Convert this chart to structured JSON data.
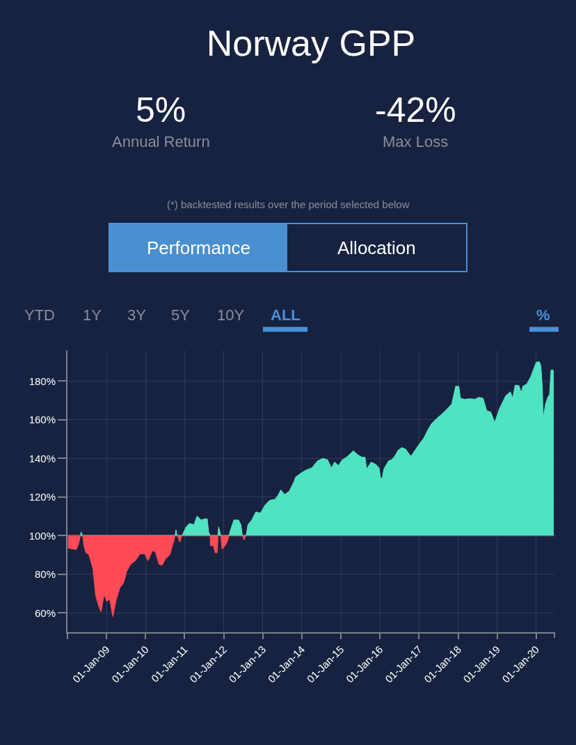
{
  "chart_data": {
    "type": "area",
    "title": "Norway GPP",
    "annotations": [
      "5%",
      "Annual Return",
      "-42%",
      "Max Loss",
      "(*) backtested results over the period selected below",
      "Performance",
      "Allocation",
      "YTD",
      "1Y",
      "3Y",
      "5Y",
      "10Y",
      "ALL",
      "%"
    ],
    "series": [
      {
        "color": "#50e3c2",
        "x": [
          "2008-05-01",
          "2008-05-08",
          "2008-05-19",
          "2008-05-22",
          "2009-06-01",
          "2010-10-02",
          "2010-10-12",
          "2010-10-22",
          "2010-11-17",
          "2010-12-05",
          "2010-12-09",
          "2011-01-15",
          "2011-02-14",
          "2011-03-29",
          "2011-04-27",
          "2011-06-03",
          "2011-07-09",
          "2011-07-31",
          "2011-08-15",
          "2011-08-24",
          "2011-08-27",
          "2011-10-12",
          "2011-11-08",
          "2011-11-14",
          "2011-12-02",
          "2011-12-05",
          "2012-01-15",
          "2012-02-20",
          "2012-02-28",
          "2012-04-05",
          "2012-05-19",
          "2012-06-10",
          "2012-06-22",
          "2012-06-24",
          "2012-07-09",
          "2012-07-28",
          "2012-08-15",
          "2012-09-20",
          "2012-10-27",
          "2012-12-09",
          "2013-01-23",
          "2013-03-07",
          "2013-04-27",
          "2013-05-27",
          "2013-06-18",
          "2013-07-24",
          "2013-09-06",
          "2013-10-19",
          "2013-11-03",
          "2013-12-16",
          "2014-02-06",
          "2014-04-05",
          "2014-05-27",
          "2014-07-17",
          "2014-08-29",
          "2014-10-05",
          "2014-11-03",
          "2014-12-09",
          "2015-01-15",
          "2015-02-28",
          "2015-04-27",
          "2015-06-10",
          "2015-07-17",
          "2015-08-15",
          "2015-08-29",
          "2015-10-12",
          "2015-11-24",
          "2015-12-24",
          "2016-01-08",
          "2016-01-23",
          "2016-02-06",
          "2016-03-22",
          "2016-04-20",
          "2016-05-19",
          "2016-06-18",
          "2016-07-24",
          "2016-08-29",
          "2016-10-05",
          "2016-10-19",
          "2016-11-24",
          "2017-01-08",
          "2017-02-14",
          "2017-03-22",
          "2017-04-27",
          "2017-06-10",
          "2017-07-24",
          "2017-09-13",
          "2017-11-03",
          "2017-12-09",
          "2018-01-08",
          "2018-01-23",
          "2018-02-28",
          "2018-04-20",
          "2018-06-10",
          "2018-07-09",
          "2018-08-22",
          "2018-09-27",
          "2018-11-03",
          "2018-12-09",
          "2019-01-23",
          "2019-03-22",
          "2019-05-05",
          "2019-05-27",
          "2019-06-18",
          "2019-07-24",
          "2019-08-15",
          "2019-08-29",
          "2019-10-05",
          "2019-11-10",
          "2020-01-01",
          "2020-01-30",
          "2020-02-14",
          "2020-02-28",
          "2020-03-07",
          "2020-03-29",
          "2020-04-20",
          "2020-05-05",
          "2020-05-19",
          "2020-06-10"
        ],
        "values": [
          100,
          102,
          100.2,
          100,
          null,
          100,
          103,
          100,
          null,
          100,
          100.2,
          104.5,
          106.3,
          105.7,
          110.2,
          108.1,
          108.7,
          108.7,
          101.4,
          100.8,
          100,
          null,
          100,
          104.5,
          100.8,
          100,
          null,
          100,
          102,
          108.1,
          108.1,
          105.7,
          100.8,
          100,
          null,
          100,
          105.7,
          108.1,
          112.3,
          111.7,
          115.9,
          118.3,
          118.9,
          121.3,
          123.7,
          121.3,
          123.1,
          127.9,
          130.3,
          132.1,
          133.9,
          135.1,
          138.7,
          140,
          139.3,
          135.1,
          138.1,
          136.3,
          139.3,
          140.8,
          143.9,
          141.8,
          140.6,
          140.6,
          134.5,
          138.1,
          136.9,
          135.1,
          129.7,
          129.7,
          134.5,
          138.7,
          139.3,
          141.2,
          144.2,
          145.6,
          144.8,
          141.8,
          141.2,
          144.2,
          147.8,
          150.5,
          154.5,
          158,
          160.4,
          162.5,
          165.2,
          168.2,
          177.3,
          177.3,
          171.2,
          170.6,
          170.9,
          170.6,
          171.6,
          171.2,
          164.6,
          164,
          158.6,
          165.8,
          172.4,
          174.5,
          171.2,
          177.9,
          177.7,
          174.1,
          177.3,
          178.5,
          182.1,
          189.7,
          190.1,
          188.1,
          176.7,
          161,
          168.2,
          171.8,
          173,
          185.7,
          185.7
        ]
      },
      {
        "color": "#ff4a57",
        "x": [
          "2008-01-08",
          "2008-01-08",
          "2008-02-28",
          "2008-03-22",
          "2008-04-13",
          "2008-04-27",
          "2008-05-01",
          "2008-05-08",
          "2008-05-22",
          "2008-06-03",
          "2008-06-21",
          "2008-07-20",
          "2008-08-26",
          "2008-09-20",
          "2008-10-19",
          "2008-11-10",
          "2008-12-09",
          "2009-01-01",
          "2009-01-30",
          "2009-02-28",
          "2009-03-29",
          "2009-05-05",
          "2009-06-10",
          "2009-07-09",
          "2009-08-15",
          "2009-09-27",
          "2009-11-10",
          "2009-12-24",
          "2010-01-23",
          "2010-03-07",
          "2010-04-05",
          "2010-05-05",
          "2010-06-03",
          "2010-07-09",
          "2010-08-15",
          "2010-09-27",
          "2010-10-02",
          "2010-10-12",
          "2010-10-22",
          "2010-10-27",
          "2010-11-17",
          "2010-12-05",
          "2011-04-27",
          "2011-08-27",
          "2011-08-29",
          "2011-09-27",
          "2011-10-12",
          "2011-11-03",
          "2011-11-08",
          "2011-11-14",
          "2011-12-05",
          "2011-12-16",
          "2012-01-15",
          "2012-02-06",
          "2012-02-20",
          "2012-04-05",
          "2012-06-24",
          "2012-07-09",
          "2012-07-24",
          "2012-07-28"
        ],
        "values": [
          100,
          93.6,
          93,
          92.8,
          95.4,
          99,
          100,
          null,
          100,
          94.8,
          91.2,
          90,
          82.8,
          69,
          63.5,
          60.5,
          69.6,
          66,
          67,
          58.1,
          66,
          73,
          75.6,
          81.6,
          85.2,
          87,
          90.6,
          90.6,
          87,
          92.4,
          91.2,
          85.2,
          84.6,
          88.2,
          90,
          98.4,
          100,
          null,
          100,
          99.6,
          96.6,
          100,
          null,
          100,
          94.8,
          94.8,
          91.2,
          91.2,
          100,
          null,
          100,
          93,
          94.8,
          97.2,
          100,
          null,
          100,
          97.8,
          99.6,
          100
        ]
      }
    ],
    "xlim": [
      "2008-01-01",
      "2020-06-20"
    ],
    "xticks": [
      {
        "value": "2008-01-01",
        "label": null
      },
      {
        "value": "2009-01-01",
        "label": "01-Jan-09"
      },
      {
        "value": "2010-01-01",
        "label": "01-Jan-10"
      },
      {
        "value": "2011-01-01",
        "label": "01-Jan-11"
      },
      {
        "value": "2012-01-01",
        "label": "01-Jan-12"
      },
      {
        "value": "2013-01-01",
        "label": "01-Jan-13"
      },
      {
        "value": "2014-01-01",
        "label": "01-Jan-14"
      },
      {
        "value": "2015-01-01",
        "label": "01-Jan-15"
      },
      {
        "value": "2016-01-01",
        "label": "01-Jan-16"
      },
      {
        "value": "2017-01-01",
        "label": "01-Jan-17"
      },
      {
        "value": "2018-01-01",
        "label": "01-Jan-18"
      },
      {
        "value": "2019-01-01",
        "label": "01-Jan-19"
      },
      {
        "value": "2020-01-01",
        "label": "01-Jan-20"
      }
    ],
    "ylim": [
      50,
      196
    ],
    "yticks": [
      {
        "value": 60,
        "label": "60%"
      },
      {
        "value": 80,
        "label": "80%"
      },
      {
        "value": 100,
        "label": "100%"
      },
      {
        "value": 120,
        "label": "120%"
      },
      {
        "value": 140,
        "label": "140%"
      },
      {
        "value": 160,
        "label": "160%"
      },
      {
        "value": 180,
        "label": "180%"
      }
    ],
    "ref_lines": [
      {
        "axis": "y",
        "value": 100,
        "color": "#7c8090"
      }
    ],
    "grid": true
  }
}
